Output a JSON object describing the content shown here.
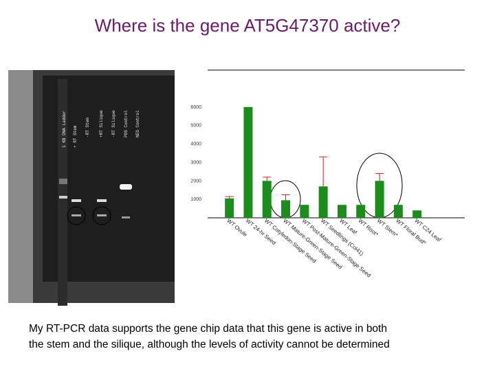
{
  "title": "Where is the gene AT5G47370 active?",
  "gel": {
    "lanes": [
      "1 KB DNA Ladder",
      "+ RT Stem",
      "-RT Stem",
      "+RT Silique",
      "-RT Silique",
      "POS Control",
      "NEG Control"
    ]
  },
  "chart_data": {
    "type": "bar",
    "categories": [
      "WT Ovule",
      "WT 24-hr Seed",
      "WT Cotyledon-Stage Seed",
      "WT Mature-Green-Stage Seed",
      "WT Post-Mature-Green-Stage Seed",
      "WT Seedlings (Col41)",
      "WT Leaf",
      "WT Root*",
      "WT Stem*",
      "WT Floral Bud*",
      "WT C24 Leaf"
    ],
    "values": [
      1050,
      6000,
      2000,
      950,
      700,
      1700,
      700,
      700,
      2000,
      700,
      400
    ],
    "errors": [
      100,
      0,
      200,
      300,
      0,
      1600,
      0,
      0,
      400,
      0,
      0
    ],
    "color": "#1c8c1c",
    "error_color": "#d02020",
    "ylim": [
      0,
      8000
    ],
    "yticks": [
      1000,
      2000,
      3000,
      4000,
      5000,
      6000
    ]
  },
  "caption": [
    "My RT-PCR data supports the gene chip data that this gene is active in both",
    "the stem and the silique, although the levels of activity cannot be determined"
  ]
}
